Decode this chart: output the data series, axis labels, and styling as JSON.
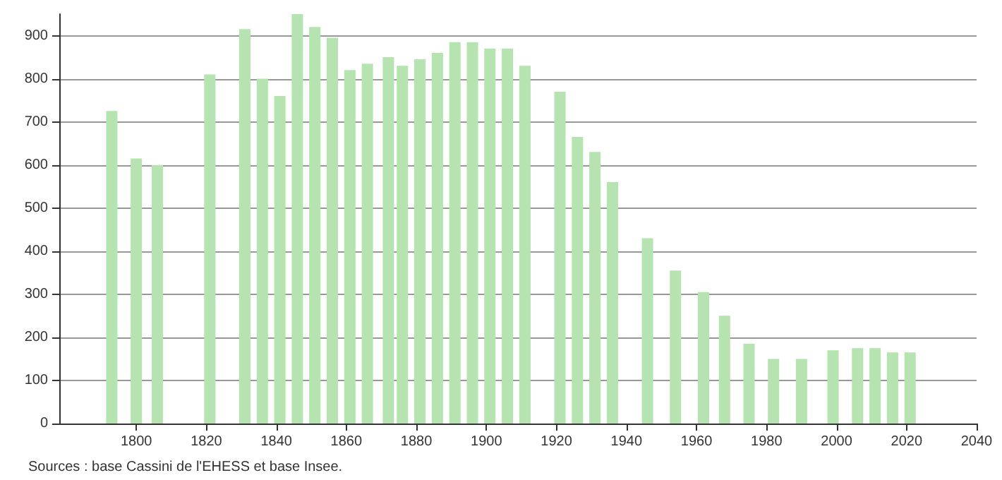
{
  "chart_data": {
    "type": "bar",
    "x": [
      1793,
      1800,
      1806,
      1821,
      1831,
      1836,
      1841,
      1846,
      1851,
      1856,
      1861,
      1866,
      1872,
      1876,
      1881,
      1886,
      1891,
      1896,
      1901,
      1906,
      1911,
      1921,
      1926,
      1931,
      1936,
      1946,
      1954,
      1962,
      1968,
      1975,
      1982,
      1990,
      1999,
      2006,
      2011,
      2016,
      2021
    ],
    "values": [
      725,
      615,
      600,
      810,
      915,
      800,
      760,
      950,
      920,
      895,
      820,
      835,
      850,
      830,
      845,
      860,
      885,
      885,
      870,
      870,
      830,
      770,
      665,
      630,
      560,
      430,
      355,
      305,
      250,
      185,
      150,
      150,
      170,
      175,
      175,
      165,
      165
    ],
    "color": "#b5e4b0",
    "xlim": [
      1778,
      2040
    ],
    "xticks": [
      1800,
      1820,
      1840,
      1860,
      1880,
      1900,
      1920,
      1940,
      1960,
      1980,
      2000,
      2020,
      2040
    ],
    "ylim": [
      0,
      950
    ],
    "yticks": [
      0,
      100,
      200,
      300,
      400,
      500,
      600,
      700,
      800,
      900
    ],
    "grid": "y",
    "annotations": [
      "Sources : base Cassini de l'EHESS et base Insee."
    ]
  }
}
